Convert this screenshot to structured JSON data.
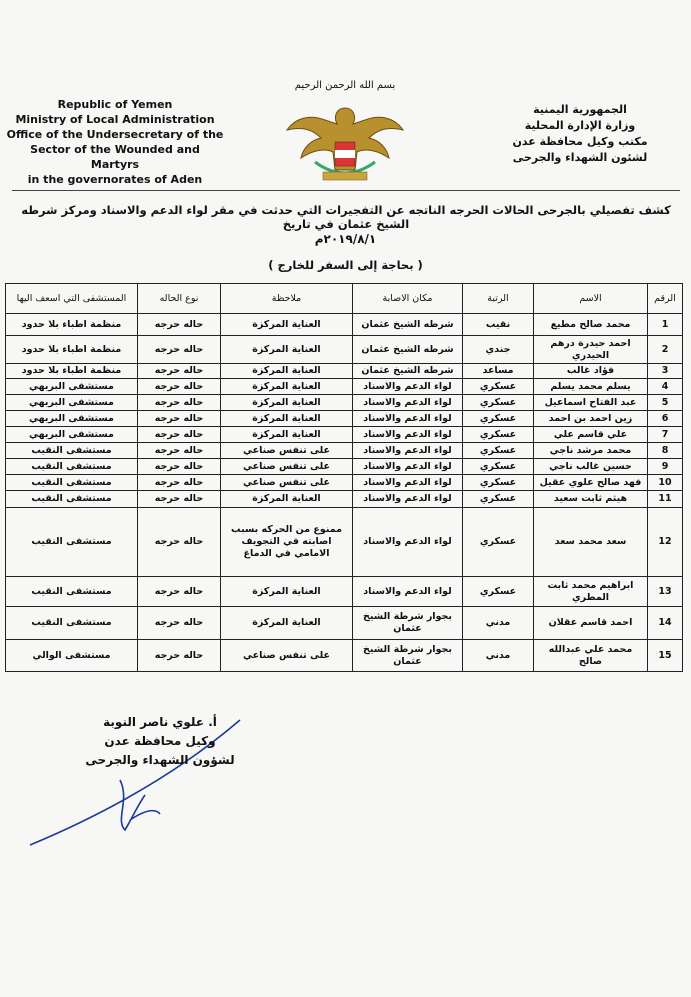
{
  "header": {
    "basmala": "بسم الله الرحمن الرحيم",
    "english": [
      "Republic of Yemen",
      "Ministry of Local Administration",
      "Office of the Undersecretary of the",
      "Sector of the Wounded and Martyrs",
      "in the governorates of Aden"
    ],
    "arabic": [
      "الجمهورية اليمنية",
      "وزارة الإدارة المحلية",
      "مكتب وكيل محافظة عدن",
      "لشئون الشهداء والجرحى"
    ]
  },
  "title": "كشف تفصيلي بالجرحى الحالات الحرجه الناتجه عن التفجيرات التي حدثت في مقر لواء الدعم والاسناد ومركز شرطه الشيخ عثمان في تاريخ",
  "date": "٢٠١٩/٨/١م",
  "note": "( بحاجة إلى السفر للخارج )",
  "table": {
    "columns": [
      "الرقم",
      "الاسم",
      "الرتبة",
      "مكان الاصابة",
      "ملاحظة",
      "نوع الحاله",
      "المستشفى التي اسعف اليها"
    ],
    "rows": [
      [
        1,
        "محمد صالح مطيع",
        "نقيب",
        "شرطه الشيخ عثمان",
        "العناية المركزة",
        "حاله حرجه",
        "منظمة اطباء بلا حدود"
      ],
      [
        2,
        "احمد حيدرة درهم الحيدري",
        "جندي",
        "شرطه الشيخ عثمان",
        "العناية المركزة",
        "حاله حرجه",
        "منظمة اطباء بلا حدود"
      ],
      [
        3,
        "فؤاد غالب",
        "مساعد",
        "شرطه الشيخ عثمان",
        "العناية المركزة",
        "حاله حرجه",
        "منظمة اطباء بلا حدود"
      ],
      [
        4,
        "يسلم محمد يسلم",
        "عسكري",
        "لواء الدعم والاسناد",
        "العناية المركزة",
        "حاله حرجه",
        "مستشفى البريهي"
      ],
      [
        5,
        "عبد الفتاح اسماعيل",
        "عسكري",
        "لواء الدعم والاسناد",
        "العناية المركزة",
        "حاله حرجه",
        "مستشفى البريهي"
      ],
      [
        6,
        "زين احمد بن احمد",
        "عسكري",
        "لواء الدعم والاسناد",
        "العناية المركزة",
        "حاله حرجه",
        "مستشفى البريهي"
      ],
      [
        7,
        "علي قاسم علي",
        "عسكري",
        "لواء الدعم والاسناد",
        "العناية المركزة",
        "حاله حرجه",
        "مستشفى البريهي"
      ],
      [
        8,
        "محمد مرشد ناجي",
        "عسكري",
        "لواء الدعم والاسناد",
        "على تنفس صناعي",
        "حاله حرجه",
        "مستشفى النقيب"
      ],
      [
        9,
        "حسين غالب ناجي",
        "عسكري",
        "لواء الدعم والاسناد",
        "على تنفس صناعي",
        "حاله حرجه",
        "مستشفى النقيب"
      ],
      [
        10,
        "فهد صالح علوي عقيل",
        "عسكري",
        "لواء الدعم والاسناد",
        "على تنفس صناعي",
        "حاله حرجه",
        "مستشفى النقيب"
      ],
      [
        11,
        "هيثم ثابت سعيد",
        "عسكري",
        "لواء الدعم والاسناد",
        "العناية المركزة",
        "حاله حرجه",
        "مستشفى النقيب"
      ],
      [
        12,
        "سعد محمد سعد",
        "عسكري",
        "لواء الدعم والاسناد",
        "ممنوع من الحركه بسبب اصابته في التجويف الامامي في الدماغ",
        "حاله حرجه",
        "مستشفى النقيب"
      ],
      [
        13,
        "ابراهيم محمد ثابت المطري",
        "عسكري",
        "لواء الدعم والاسناد",
        "العناية المركزة",
        "حاله حرجه",
        "مستشفى النقيب"
      ],
      [
        14,
        "احمد قاسم عقلان",
        "مدني",
        "بجوار شرطة الشيخ عثمان",
        "العناية المركزة",
        "حاله حرجه",
        "مستشفى النقيب"
      ],
      [
        15,
        "محمد علي عبدالله صالح",
        "مدني",
        "بجوار شرطة الشيخ عثمان",
        "على تنفس صناعي",
        "حاله حرجه",
        "مستشفى الوالي"
      ]
    ]
  },
  "signature": [
    "أ. علوي ناصر النوبة",
    "وكيل محافظة عدن",
    "لشؤون الشهداء والجرحى"
  ]
}
